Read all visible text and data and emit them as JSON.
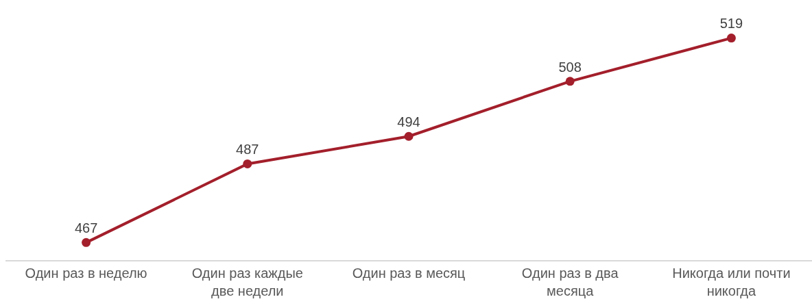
{
  "chart_data": {
    "type": "line",
    "categories": [
      "Один раз в неделю",
      "Один раз каждые две недели",
      "Один раз в месяц",
      "Один раз в два месяца",
      "Никогда или почти никогда"
    ],
    "series": [
      {
        "color": "#a31f2b",
        "values": [
          467,
          487,
          494,
          508,
          519
        ]
      }
    ],
    "data_labels": true,
    "marker": "circle",
    "line_style": "solid",
    "tick_labels": "x"
  }
}
